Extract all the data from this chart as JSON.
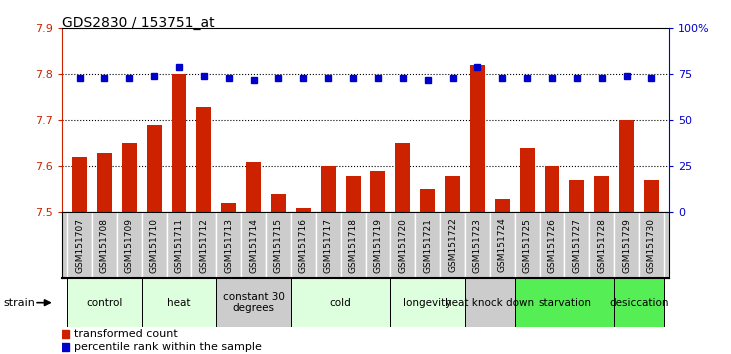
{
  "title": "GDS2830 / 153751_at",
  "samples": [
    "GSM151707",
    "GSM151708",
    "GSM151709",
    "GSM151710",
    "GSM151711",
    "GSM151712",
    "GSM151713",
    "GSM151714",
    "GSM151715",
    "GSM151716",
    "GSM151717",
    "GSM151718",
    "GSM151719",
    "GSM151720",
    "GSM151721",
    "GSM151722",
    "GSM151723",
    "GSM151724",
    "GSM151725",
    "GSM151726",
    "GSM151727",
    "GSM151728",
    "GSM151729",
    "GSM151730"
  ],
  "bar_values": [
    7.62,
    7.63,
    7.65,
    7.69,
    7.8,
    7.73,
    7.52,
    7.61,
    7.54,
    7.51,
    7.6,
    7.58,
    7.59,
    7.65,
    7.55,
    7.58,
    7.82,
    7.53,
    7.64,
    7.6,
    7.57,
    7.58,
    7.7,
    7.57
  ],
  "percentile_values": [
    73,
    73,
    73,
    74,
    79,
    74,
    73,
    72,
    73,
    73,
    73,
    73,
    73,
    73,
    72,
    73,
    79,
    73,
    73,
    73,
    73,
    73,
    74,
    73
  ],
  "bar_color": "#cc2200",
  "dot_color": "#0000cc",
  "ylim_left": [
    7.5,
    7.9
  ],
  "ylim_right": [
    0,
    100
  ],
  "yticks_left": [
    7.5,
    7.6,
    7.7,
    7.8,
    7.9
  ],
  "ytick_labels_left": [
    "7.5",
    "7.6",
    "7.7",
    "7.8",
    "7.9"
  ],
  "yticks_right": [
    0,
    25,
    50,
    75,
    100
  ],
  "ytick_labels_right": [
    "0",
    "25",
    "50",
    "75",
    "100%"
  ],
  "groups": [
    {
      "label": "control",
      "start": 0,
      "end": 2,
      "color": "#ddffdd"
    },
    {
      "label": "heat",
      "start": 3,
      "end": 5,
      "color": "#ddffdd"
    },
    {
      "label": "constant 30\ndegrees",
      "start": 6,
      "end": 8,
      "color": "#cccccc"
    },
    {
      "label": "cold",
      "start": 9,
      "end": 12,
      "color": "#ddffdd"
    },
    {
      "label": "longevity",
      "start": 13,
      "end": 15,
      "color": "#ddffdd"
    },
    {
      "label": "heat knock down",
      "start": 16,
      "end": 17,
      "color": "#cccccc"
    },
    {
      "label": "starvation",
      "start": 18,
      "end": 21,
      "color": "#55ee55"
    },
    {
      "label": "desiccation",
      "start": 22,
      "end": 23,
      "color": "#55ee55"
    }
  ],
  "legend_items": [
    {
      "label": "transformed count",
      "color": "#cc2200"
    },
    {
      "label": "percentile rank within the sample",
      "color": "#0000cc"
    }
  ],
  "strain_label": "strain",
  "background_color": "#ffffff",
  "ax_label_color_left": "#cc2200",
  "ax_label_color_right": "#0000cc",
  "xtick_bg_color": "#cccccc",
  "xtick_border_color": "#ffffff"
}
